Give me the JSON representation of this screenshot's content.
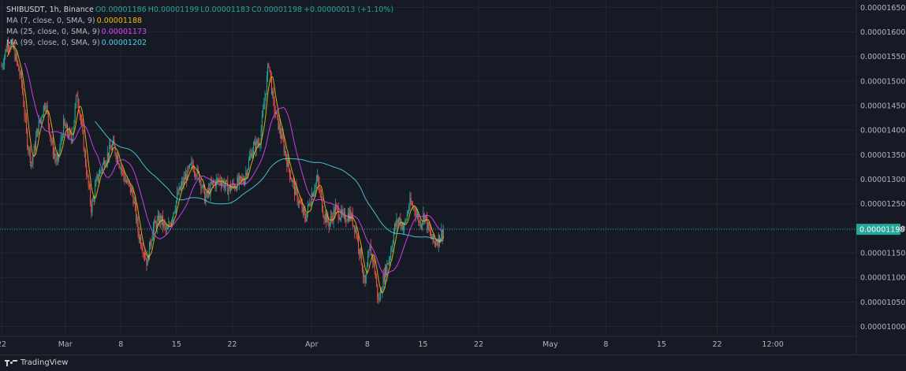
{
  "legend": {
    "symbol": "SHIBUSDT, 1h, Binance",
    "open": "O0.00001186",
    "high": "H0.00001199",
    "low": "L0.00001183",
    "close": "C0.00001198",
    "change": "+0.00000013 (+1.10%)",
    "ma7_label": "MA (7, close, 0, SMA, 9)",
    "ma7_value": "0.00001188",
    "ma25_label": "MA (25, close, 0, SMA, 9)",
    "ma25_value": "0.00001173",
    "ma99_label": "MA (99, close, 0, SMA, 9)",
    "ma99_value": "0.00001202"
  },
  "price_tag": "0.00001198",
  "branding": "TradingView",
  "colors": {
    "background": "#161a25",
    "grid": "#242832",
    "up": "#26a69a",
    "down": "#ef5350",
    "ma7": "#f0b90b",
    "ma25": "#e040fb",
    "ma99": "#4dd0e1",
    "price_tag": "#26a69a"
  },
  "chart_data": {
    "type": "candlestick",
    "y_ticks": [
      "0.00001000",
      "0.00001050",
      "0.00001100",
      "0.00001150",
      "0.00001200",
      "0.00001250",
      "0.00001300",
      "0.00001350",
      "0.00001400",
      "0.00001450",
      "0.00001500",
      "0.00001550",
      "0.00001600",
      "0.00001650"
    ],
    "y_tick_values": [
      1000,
      1050,
      1100,
      1150,
      1200,
      1250,
      1300,
      1350,
      1400,
      1450,
      1500,
      1550,
      1600,
      1650
    ],
    "y_unit_scale": 1e-08,
    "ylim": [
      980,
      1665
    ],
    "x_ticks": [
      {
        "label": "22",
        "day": 0
      },
      {
        "label": "Mar",
        "day": 8
      },
      {
        "label": "8",
        "day": 15
      },
      {
        "label": "15",
        "day": 22
      },
      {
        "label": "22",
        "day": 29
      },
      {
        "label": "Apr",
        "day": 39
      },
      {
        "label": "8",
        "day": 46
      },
      {
        "label": "15",
        "day": 53
      },
      {
        "label": "22",
        "day": 60
      },
      {
        "label": "May",
        "day": 69
      },
      {
        "label": "8",
        "day": 76
      },
      {
        "label": "15",
        "day": 83
      },
      {
        "label": "22",
        "day": 90
      },
      {
        "label": "12:00",
        "day": 97
      }
    ],
    "xlim_days": [
      -0.2,
      107.5
    ],
    "last_day": 55.6,
    "current_price": 1198,
    "close_series": [
      {
        "day": 0,
        "close": 1530
      },
      {
        "day": 0.8,
        "close": 1580
      },
      {
        "day": 1.5,
        "close": 1565
      },
      {
        "day": 2.5,
        "close": 1500
      },
      {
        "day": 3.2,
        "close": 1380
      },
      {
        "day": 3.8,
        "close": 1330
      },
      {
        "day": 4.5,
        "close": 1400
      },
      {
        "day": 5.5,
        "close": 1460
      },
      {
        "day": 6.3,
        "close": 1370
      },
      {
        "day": 7,
        "close": 1330
      },
      {
        "day": 7.8,
        "close": 1410
      },
      {
        "day": 8.8,
        "close": 1380
      },
      {
        "day": 9.5,
        "close": 1480
      },
      {
        "day": 10.1,
        "close": 1400
      },
      {
        "day": 10.8,
        "close": 1300
      },
      {
        "day": 11.3,
        "close": 1240
      },
      {
        "day": 12,
        "close": 1300
      },
      {
        "day": 13,
        "close": 1340
      },
      {
        "day": 14,
        "close": 1370
      },
      {
        "day": 14.7,
        "close": 1340
      },
      {
        "day": 15.5,
        "close": 1300
      },
      {
        "day": 16.5,
        "close": 1270
      },
      {
        "day": 17.2,
        "close": 1190
      },
      {
        "day": 17.8,
        "close": 1160
      },
      {
        "day": 18.3,
        "close": 1130
      },
      {
        "day": 19,
        "close": 1200
      },
      {
        "day": 20,
        "close": 1220
      },
      {
        "day": 20.8,
        "close": 1190
      },
      {
        "day": 21.5,
        "close": 1230
      },
      {
        "day": 22.2,
        "close": 1270
      },
      {
        "day": 23,
        "close": 1300
      },
      {
        "day": 24,
        "close": 1330
      },
      {
        "day": 25,
        "close": 1300
      },
      {
        "day": 25.6,
        "close": 1260
      },
      {
        "day": 26.5,
        "close": 1290
      },
      {
        "day": 27.5,
        "close": 1300
      },
      {
        "day": 28.5,
        "close": 1280
      },
      {
        "day": 29.5,
        "close": 1290
      },
      {
        "day": 30.5,
        "close": 1300
      },
      {
        "day": 31.5,
        "close": 1360
      },
      {
        "day": 32.5,
        "close": 1380
      },
      {
        "day": 33.2,
        "close": 1480
      },
      {
        "day": 33.6,
        "close": 1540
      },
      {
        "day": 34.2,
        "close": 1450
      },
      {
        "day": 35,
        "close": 1400
      },
      {
        "day": 36,
        "close": 1330
      },
      {
        "day": 36.8,
        "close": 1280
      },
      {
        "day": 37.5,
        "close": 1250
      },
      {
        "day": 38.2,
        "close": 1220
      },
      {
        "day": 39,
        "close": 1270
      },
      {
        "day": 39.7,
        "close": 1300
      },
      {
        "day": 40.5,
        "close": 1230
      },
      {
        "day": 41.2,
        "close": 1210
      },
      {
        "day": 42,
        "close": 1240
      },
      {
        "day": 43,
        "close": 1220
      },
      {
        "day": 43.8,
        "close": 1230
      },
      {
        "day": 44.5,
        "close": 1200
      },
      {
        "day": 45.2,
        "close": 1140
      },
      {
        "day": 45.7,
        "close": 1080
      },
      {
        "day": 46.3,
        "close": 1160
      },
      {
        "day": 46.8,
        "close": 1130
      },
      {
        "day": 47.4,
        "close": 1050
      },
      {
        "day": 47.9,
        "close": 1090
      },
      {
        "day": 48.4,
        "close": 1120
      },
      {
        "day": 48.9,
        "close": 1150
      },
      {
        "day": 49.4,
        "close": 1200
      },
      {
        "day": 50,
        "close": 1220
      },
      {
        "day": 50.6,
        "close": 1200
      },
      {
        "day": 51.3,
        "close": 1250
      },
      {
        "day": 52,
        "close": 1240
      },
      {
        "day": 52.6,
        "close": 1210
      },
      {
        "day": 53.2,
        "close": 1230
      },
      {
        "day": 53.8,
        "close": 1190
      },
      {
        "day": 54.4,
        "close": 1170
      },
      {
        "day": 55,
        "close": 1180
      },
      {
        "day": 55.6,
        "close": 1198
      }
    ]
  }
}
